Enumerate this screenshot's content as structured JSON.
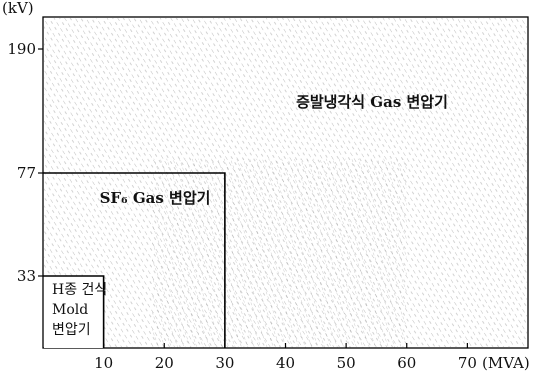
{
  "chart_data": {
    "type": "area",
    "title": "",
    "xlabel": "(MVA)",
    "ylabel": "(kV)",
    "xlim": [
      0,
      80
    ],
    "ylim": [
      0,
      200
    ],
    "x_ticks": [
      10,
      20,
      30,
      40,
      50,
      60,
      70
    ],
    "y_ticks": [
      33,
      77,
      190
    ],
    "grid": false,
    "regions": [
      {
        "name": "증발냉각식 Gas 변압기",
        "lines": [
          "증발냉각식 Gas 변압기"
        ],
        "x_max": 80,
        "y_max": 200
      },
      {
        "name": "SF₆ Gas 변압기",
        "lines": [
          "SF₆ Gas 변압기"
        ],
        "x_max": 30,
        "y_max": 77
      },
      {
        "name": "H종 건식 Mold 변압기",
        "lines": [
          "H종 건식",
          "Mold",
          "변압기"
        ],
        "x_max": 10,
        "y_max": 33
      }
    ]
  }
}
